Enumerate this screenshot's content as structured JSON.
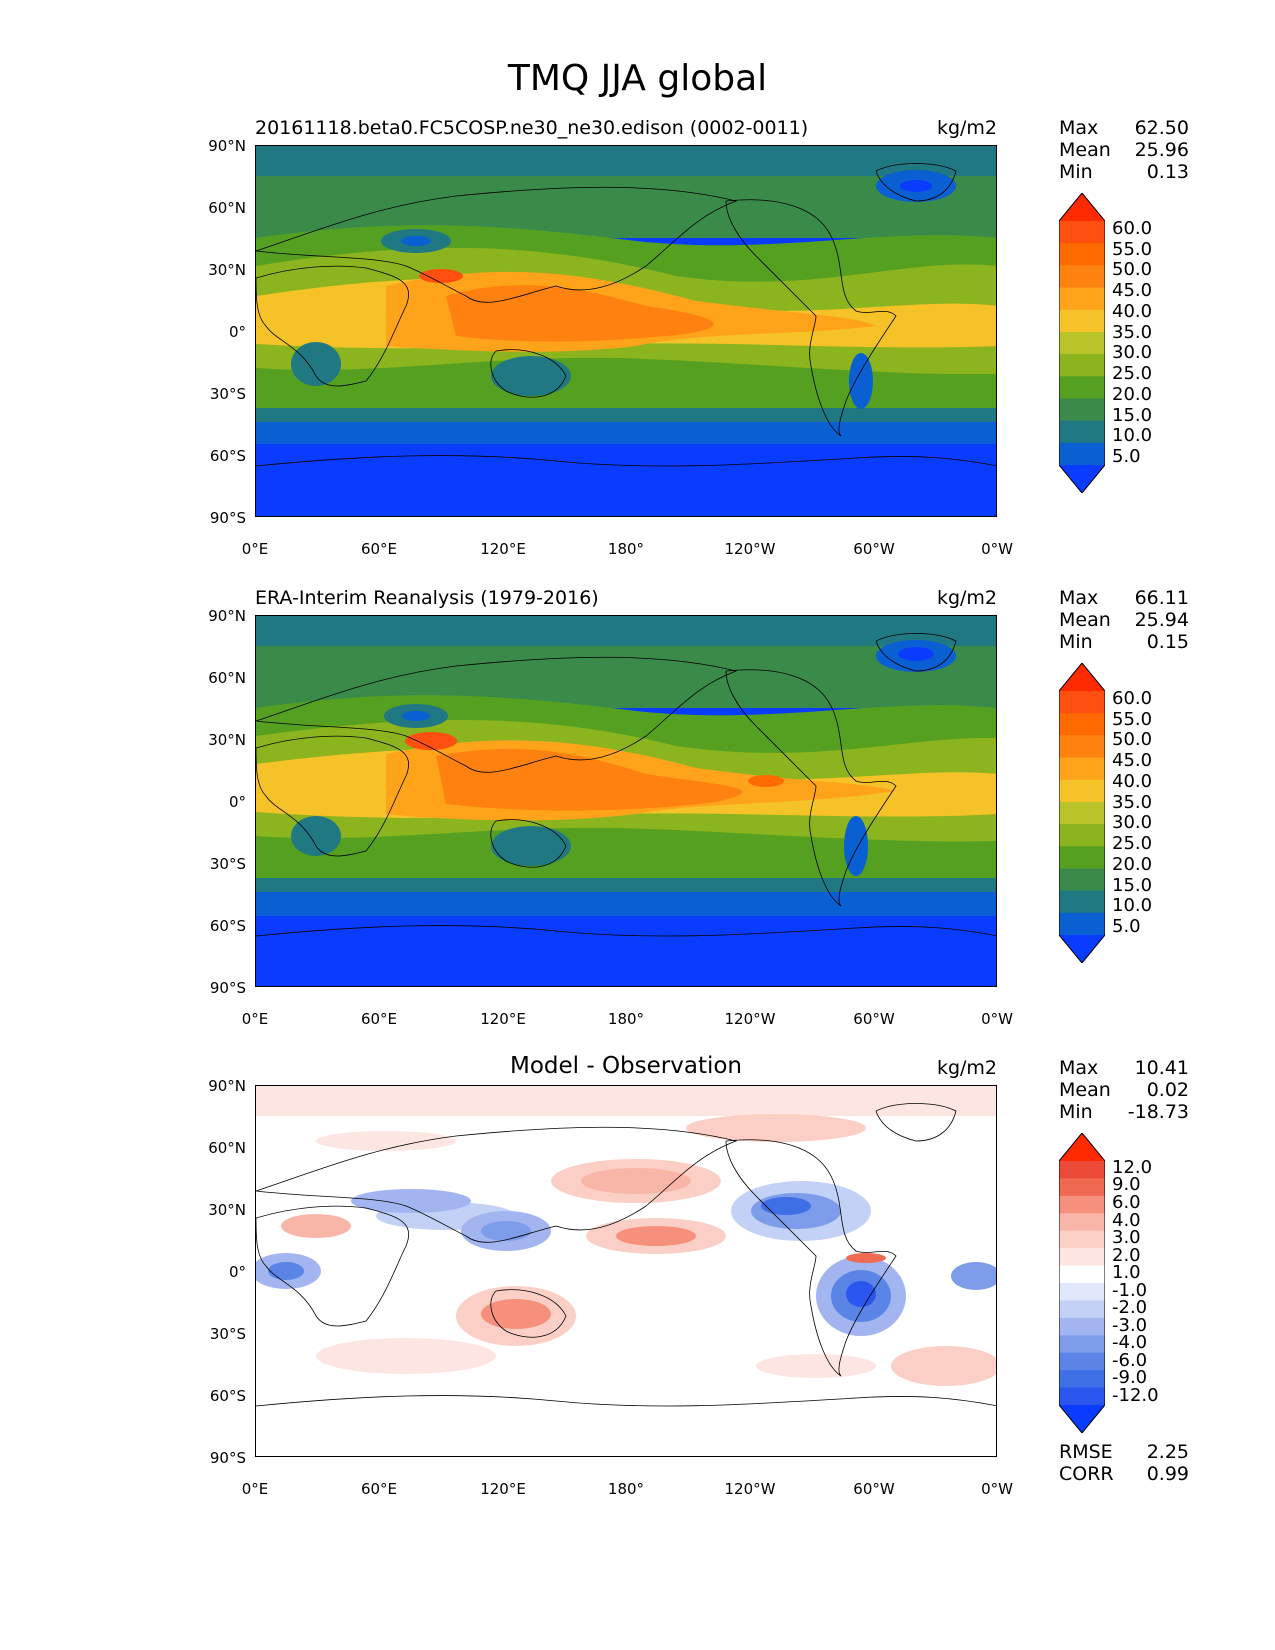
{
  "title": "TMQ JJA global",
  "lat_labels": [
    "90°N",
    "60°N",
    "30°N",
    "0°",
    "30°S",
    "60°S",
    "90°S"
  ],
  "lon_labels": [
    "0°E",
    "60°E",
    "120°E",
    "180°",
    "120°W",
    "60°W",
    "0°W"
  ],
  "panels": [
    {
      "title": "20161118.beta0.FC5COSP.ne30_ne30.edison (0002-0011)",
      "units": "kg/m2",
      "stats": [
        {
          "label": "Max",
          "value": "62.50"
        },
        {
          "label": "Mean",
          "value": "25.96"
        },
        {
          "label": "Min",
          "value": "0.13"
        }
      ],
      "colorbar_labels": [
        "60.0",
        "55.0",
        "50.0",
        "45.0",
        "40.0",
        "35.0",
        "30.0",
        "25.0",
        "20.0",
        "15.0",
        "10.0",
        "5.0"
      ]
    },
    {
      "title": "ERA-Interim Reanalysis (1979-2016)",
      "units": "kg/m2",
      "stats": [
        {
          "label": "Max",
          "value": "66.11"
        },
        {
          "label": "Mean",
          "value": "25.94"
        },
        {
          "label": "Min",
          "value": "0.15"
        }
      ],
      "colorbar_labels": [
        "60.0",
        "55.0",
        "50.0",
        "45.0",
        "40.0",
        "35.0",
        "30.0",
        "25.0",
        "20.0",
        "15.0",
        "10.0",
        "5.0"
      ]
    },
    {
      "title": "Model - Observation",
      "units": "kg/m2",
      "stats": [
        {
          "label": "Max",
          "value": "10.41"
        },
        {
          "label": "Mean",
          "value": "0.02"
        },
        {
          "label": "Min",
          "value": "-18.73"
        }
      ],
      "colorbar_labels": [
        "12.0",
        "9.0",
        "6.0",
        "4.0",
        "3.0",
        "2.0",
        "1.0",
        "-1.0",
        "-2.0",
        "-3.0",
        "-4.0",
        "-6.0",
        "-9.0",
        "-12.0"
      ],
      "metrics": [
        {
          "label": "RMSE",
          "value": "2.25"
        },
        {
          "label": "CORR",
          "value": "0.99"
        }
      ]
    }
  ],
  "colors": {
    "abs_scale": [
      "#0a3cff",
      "#0a5fd2",
      "#1f7882",
      "#3a8a4a",
      "#55a020",
      "#8cb41e",
      "#b9c32a",
      "#f5c227",
      "#ffa31a",
      "#ff8210",
      "#ff6a00",
      "#ff5010",
      "#ff2a00"
    ],
    "diff_scale": [
      "#0a3cff",
      "#2a55ee",
      "#3f6fe6",
      "#5a85e6",
      "#7d9cea",
      "#a3b5f0",
      "#c4d1f7",
      "#e2e8fc",
      "#ffffff",
      "#fde6e2",
      "#fbcfc5",
      "#f9b6a8",
      "#f5907c",
      "#f06a52",
      "#ea4a36",
      "#ff2a00"
    ]
  }
}
